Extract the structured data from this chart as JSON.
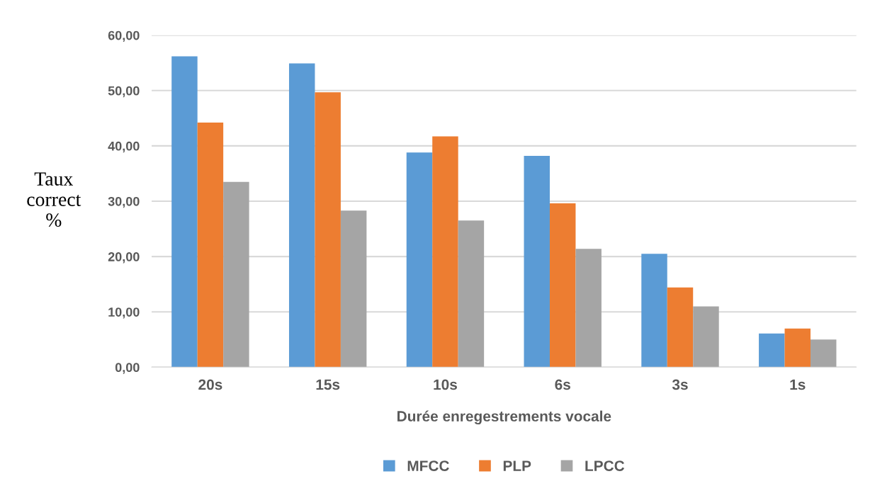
{
  "chart_data": {
    "type": "bar",
    "xlabel": "Durée enregestrements vocale",
    "ylabel": "Taux\ncorrect\n%",
    "categories": [
      "20s",
      "15s",
      "10s",
      "6s",
      "3s",
      "1s"
    ],
    "series": [
      {
        "name": "MFCC",
        "color": "#5b9bd5",
        "values": [
          56.2,
          54.9,
          38.8,
          38.2,
          20.5,
          6.1
        ]
      },
      {
        "name": "PLP",
        "color": "#ed7d31",
        "values": [
          44.2,
          49.7,
          41.7,
          29.6,
          14.4,
          7.0
        ]
      },
      {
        "name": "LPCC",
        "color": "#a5a5a5",
        "values": [
          33.5,
          28.3,
          26.5,
          21.4,
          11.0,
          5.0
        ]
      }
    ],
    "ylim": [
      0,
      60
    ],
    "yticks": [
      {
        "value": 0,
        "label": "0,00"
      },
      {
        "value": 10,
        "label": "10,00"
      },
      {
        "value": 20,
        "label": "20,00"
      },
      {
        "value": 30,
        "label": "30,00"
      },
      {
        "value": 40,
        "label": "40,00"
      },
      {
        "value": 50,
        "label": "50,00"
      },
      {
        "value": 60,
        "label": "60,00"
      }
    ],
    "grid": "y",
    "legend": "bottom"
  }
}
